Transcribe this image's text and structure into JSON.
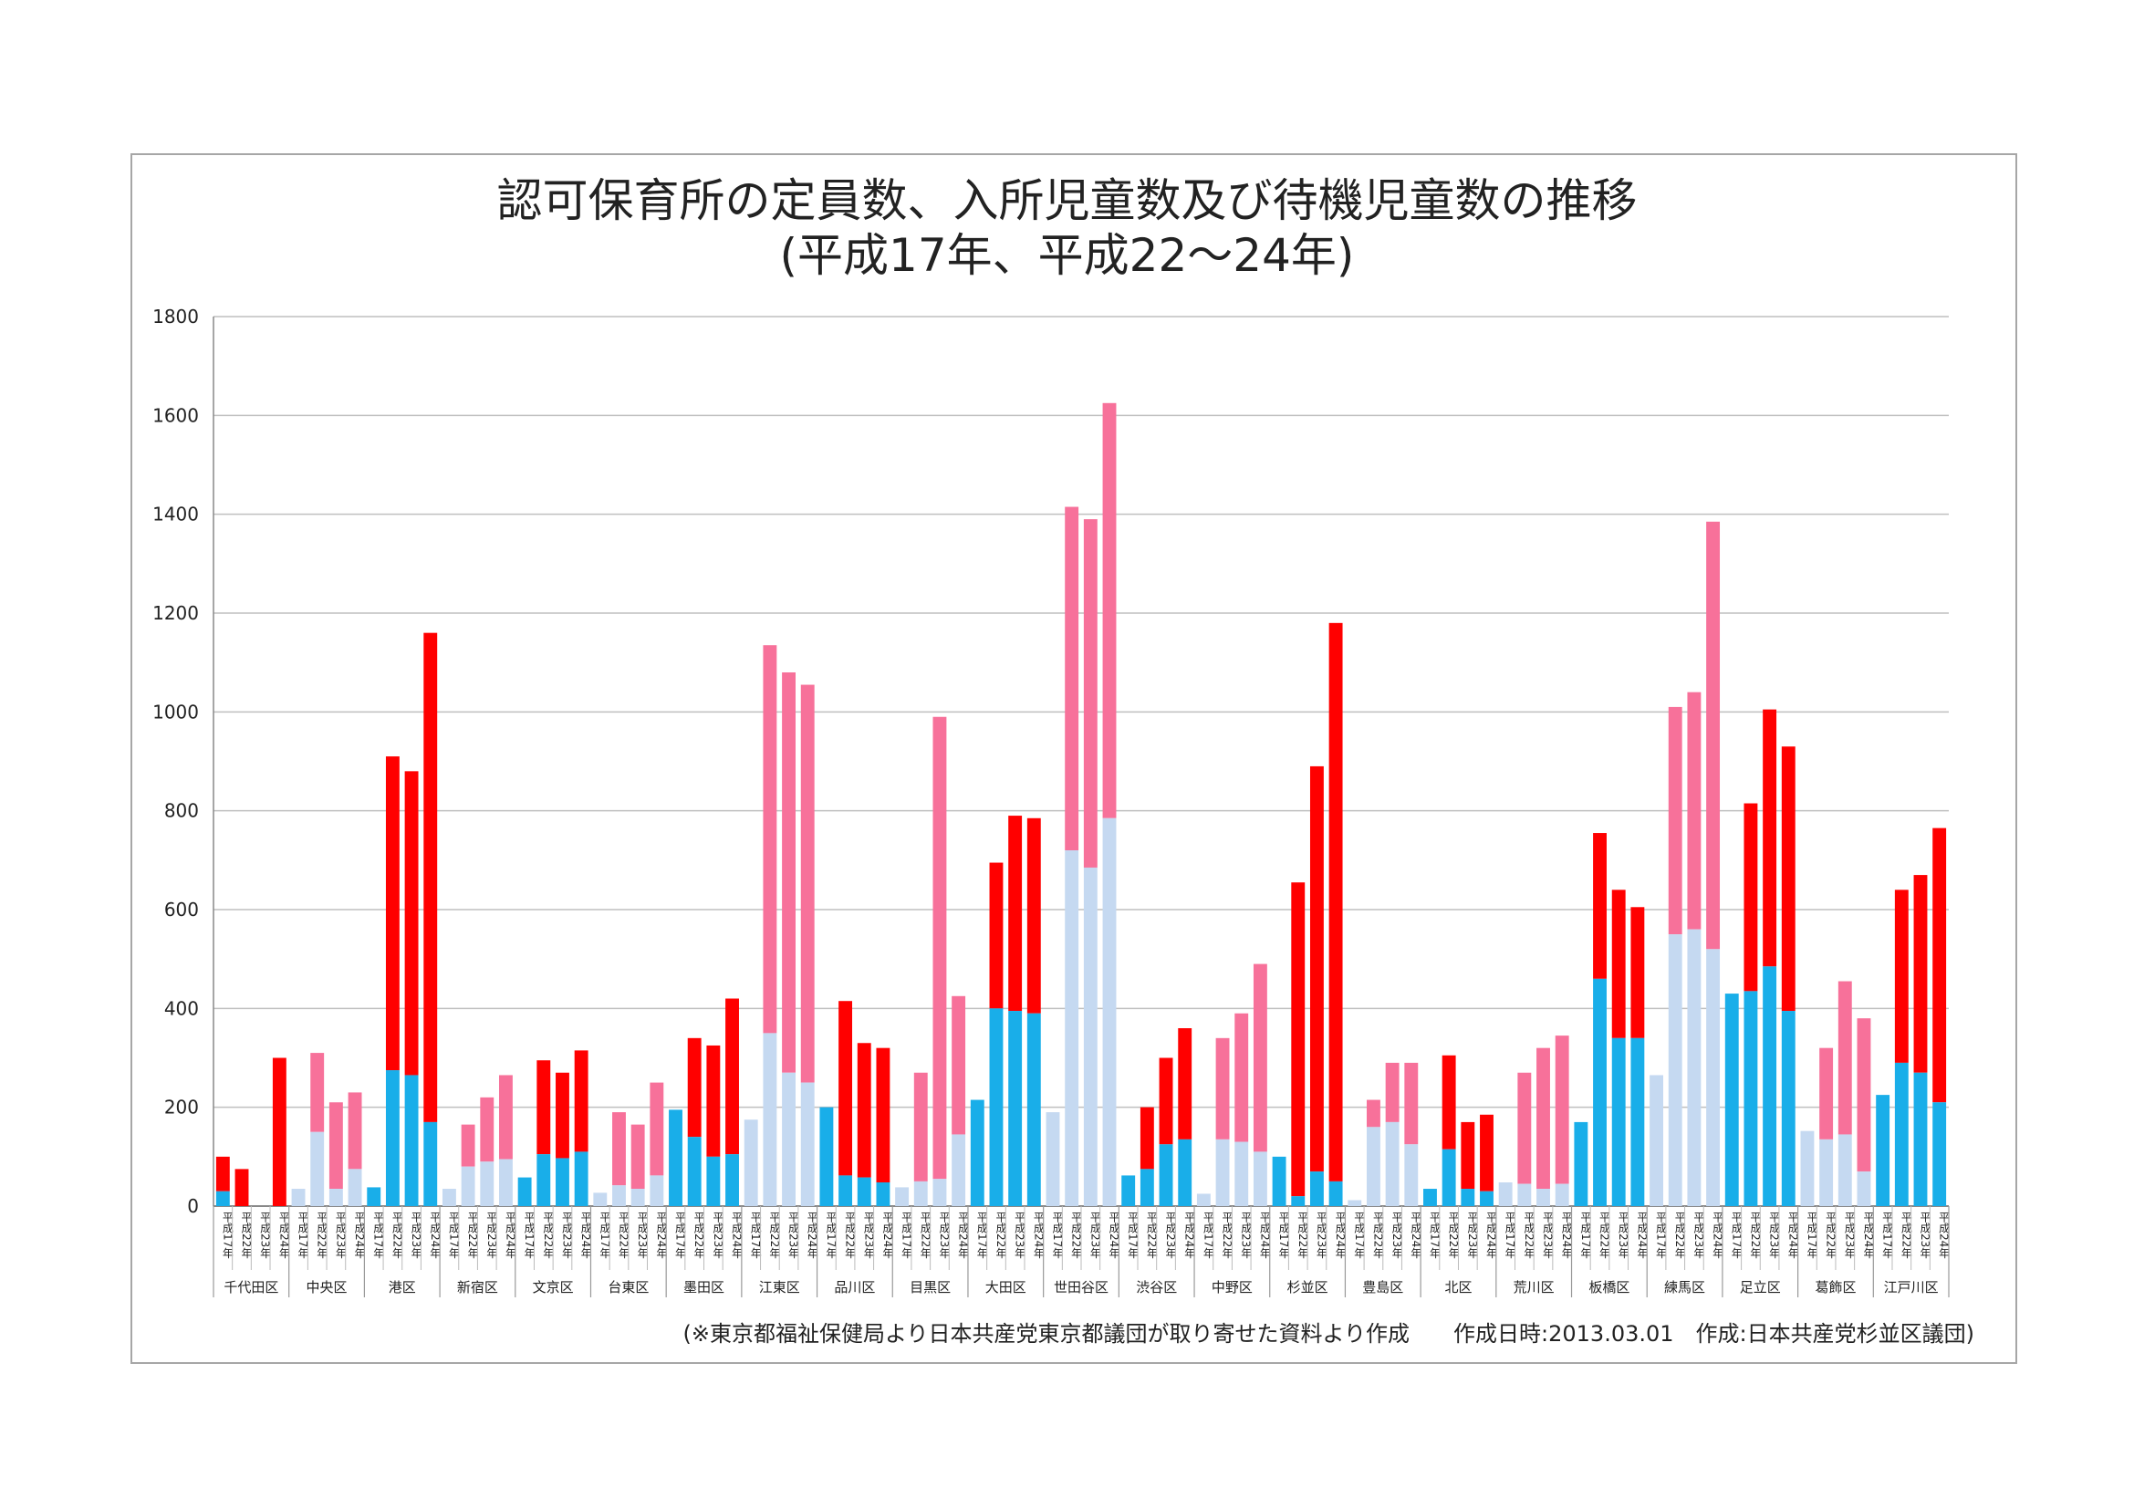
{
  "chart_data": {
    "type": "bar",
    "title": "認可保育所の定員数、入所児童数及び待機児童数の推移",
    "subtitle": "(平成17年、平成22～24年)",
    "ylim": [
      0,
      1800
    ],
    "yticks": [
      0,
      200,
      400,
      600,
      800,
      1000,
      1200,
      1400,
      1600,
      1800
    ],
    "grid": true,
    "stacked": true,
    "years": [
      "平成17年",
      "平成22年",
      "平成23年",
      "平成24年"
    ],
    "colors": {
      "light_base": "#c5d9f1",
      "light_top": "#f7719a",
      "bright_base": "#19aee9",
      "bright_top": "#ff0000"
    },
    "wards": [
      {
        "name": "千代田区",
        "style": "bright",
        "base": [
          30,
          0,
          0,
          0
        ],
        "total": [
          100,
          75,
          0,
          300
        ]
      },
      {
        "name": "中央区",
        "style": "light",
        "base": [
          35,
          150,
          35,
          75
        ],
        "total": [
          35,
          310,
          210,
          230
        ]
      },
      {
        "name": "港区",
        "style": "bright",
        "base": [
          38,
          275,
          265,
          170
        ],
        "total": [
          38,
          910,
          880,
          1160
        ]
      },
      {
        "name": "新宿区",
        "style": "light",
        "base": [
          35,
          80,
          90,
          95
        ],
        "total": [
          35,
          165,
          220,
          265
        ]
      },
      {
        "name": "文京区",
        "style": "bright",
        "base": [
          58,
          105,
          97,
          110
        ],
        "total": [
          58,
          295,
          270,
          315
        ]
      },
      {
        "name": "台東区",
        "style": "light",
        "base": [
          27,
          42,
          35,
          62
        ],
        "total": [
          27,
          190,
          165,
          250
        ]
      },
      {
        "name": "墨田区",
        "style": "bright",
        "base": [
          195,
          140,
          100,
          105
        ],
        "total": [
          195,
          340,
          325,
          420
        ]
      },
      {
        "name": "江東区",
        "style": "light",
        "base": [
          175,
          350,
          270,
          250
        ],
        "total": [
          175,
          1135,
          1080,
          1055
        ]
      },
      {
        "name": "品川区",
        "style": "bright",
        "base": [
          200,
          62,
          58,
          48
        ],
        "total": [
          200,
          415,
          330,
          320
        ]
      },
      {
        "name": "目黒区",
        "style": "light",
        "base": [
          38,
          50,
          55,
          145
        ],
        "total": [
          38,
          270,
          990,
          425
        ]
      },
      {
        "name": "大田区",
        "style": "bright",
        "base": [
          215,
          400,
          395,
          390
        ],
        "total": [
          215,
          695,
          790,
          785
        ]
      },
      {
        "name": "世田谷区",
        "style": "light",
        "base": [
          190,
          720,
          685,
          785
        ],
        "total": [
          190,
          1415,
          1390,
          1625
        ]
      },
      {
        "name": "渋谷区",
        "style": "bright",
        "base": [
          62,
          75,
          125,
          135
        ],
        "total": [
          62,
          200,
          300,
          360
        ]
      },
      {
        "name": "中野区",
        "style": "light",
        "base": [
          25,
          135,
          130,
          110
        ],
        "total": [
          25,
          340,
          390,
          490
        ]
      },
      {
        "name": "杉並区",
        "style": "bright",
        "base": [
          100,
          20,
          70,
          50
        ],
        "total": [
          100,
          655,
          890,
          1180
        ]
      },
      {
        "name": "豊島区",
        "style": "light",
        "base": [
          12,
          160,
          170,
          125
        ],
        "total": [
          12,
          215,
          290,
          290
        ]
      },
      {
        "name": "北区",
        "style": "bright",
        "base": [
          35,
          115,
          35,
          30
        ],
        "total": [
          35,
          305,
          170,
          185
        ]
      },
      {
        "name": "荒川区",
        "style": "light",
        "base": [
          48,
          45,
          35,
          45
        ],
        "total": [
          48,
          270,
          320,
          345
        ]
      },
      {
        "name": "板橋区",
        "style": "bright",
        "base": [
          170,
          460,
          340,
          340
        ],
        "total": [
          170,
          755,
          640,
          605
        ]
      },
      {
        "name": "練馬区",
        "style": "light",
        "base": [
          265,
          550,
          560,
          520
        ],
        "total": [
          265,
          1010,
          1040,
          1385
        ]
      },
      {
        "name": "足立区",
        "style": "bright",
        "base": [
          430,
          435,
          485,
          395
        ],
        "total": [
          430,
          815,
          1005,
          930
        ]
      },
      {
        "name": "葛飾区",
        "style": "light",
        "base": [
          152,
          135,
          145,
          70
        ],
        "total": [
          152,
          320,
          455,
          380
        ]
      },
      {
        "name": "江戸川区",
        "style": "bright",
        "base": [
          225,
          290,
          270,
          210
        ],
        "total": [
          225,
          640,
          670,
          765
        ]
      }
    ]
  },
  "footnote": "(※東京都福祉保健局より日本共産党東京都議団が取り寄せた資料より作成　　作成日時:2013.03.01　作成:日本共産党杉並区議団)"
}
